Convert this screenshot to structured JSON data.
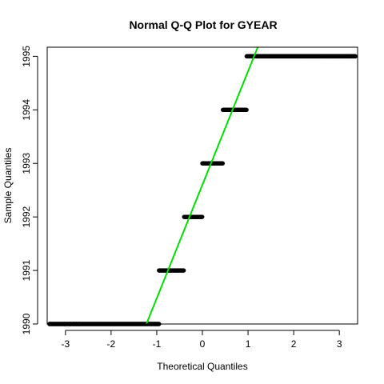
{
  "chart_data": {
    "type": "scatter",
    "title": "Normal Q-Q Plot for GYEAR",
    "xlabel": "Theoretical Quantiles",
    "ylabel": "Sample Quantiles",
    "xlim": [
      -3.4,
      3.4
    ],
    "ylim": [
      1990,
      1995.17
    ],
    "x_ticks": [
      -3,
      -2,
      -1,
      0,
      1,
      2,
      3
    ],
    "y_ticks": [
      1990,
      1991,
      1992,
      1993,
      1994,
      1995
    ],
    "groups": [
      {
        "y": 1990,
        "x_min": -3.35,
        "x_max": -0.95,
        "outliers": [
          -3.35,
          -3.02,
          -2.9,
          -2.82,
          -2.76,
          -2.7
        ]
      },
      {
        "y": 1991,
        "x_min": -0.95,
        "x_max": -0.4,
        "outliers": []
      },
      {
        "y": 1992,
        "x_min": -0.4,
        "x_max": 0.0,
        "outliers": []
      },
      {
        "y": 1993,
        "x_min": 0.0,
        "x_max": 0.45,
        "outliers": []
      },
      {
        "y": 1994,
        "x_min": 0.45,
        "x_max": 0.97,
        "outliers": []
      },
      {
        "y": 1995,
        "x_min": 0.97,
        "x_max": 3.35,
        "outliers": [
          2.7,
          2.76,
          2.82,
          2.9,
          3.02,
          3.35
        ]
      }
    ],
    "reference_line": {
      "slope": 2.12,
      "intercept": 1992.6,
      "color": "#00e000"
    },
    "point_color": "#000000",
    "grid": false
  }
}
